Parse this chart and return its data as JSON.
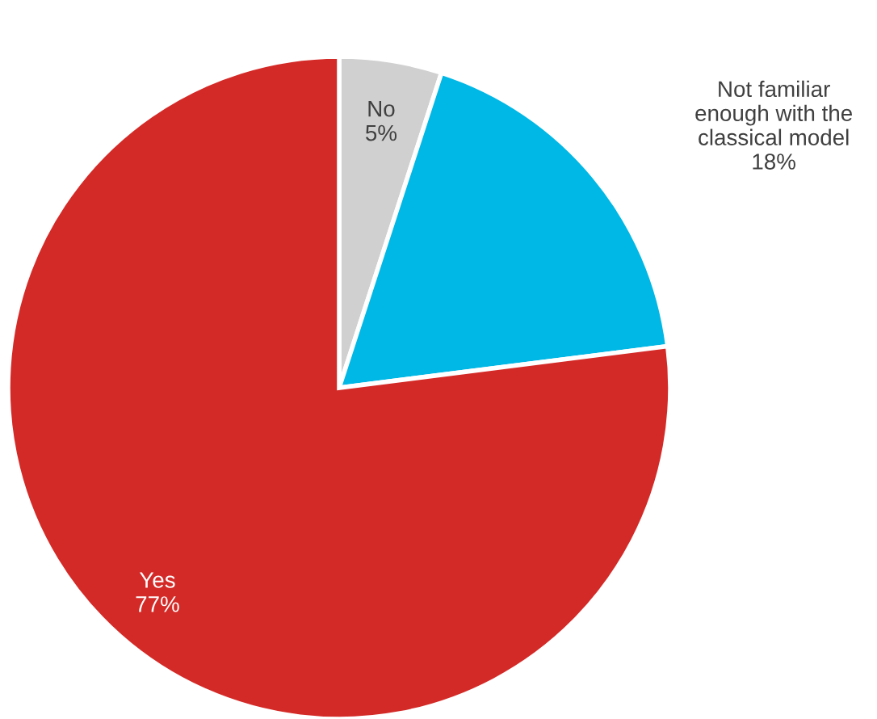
{
  "chart_data": {
    "type": "pie",
    "categories": [
      "No",
      "Not familiar\nenough with the\nclassical model",
      "Yes"
    ],
    "values": [
      5,
      18,
      77
    ],
    "colors": [
      "#d0d0d0",
      "#00b8e6",
      "#d42a27"
    ],
    "value_labels": [
      "5%",
      "18%",
      "77%"
    ]
  }
}
